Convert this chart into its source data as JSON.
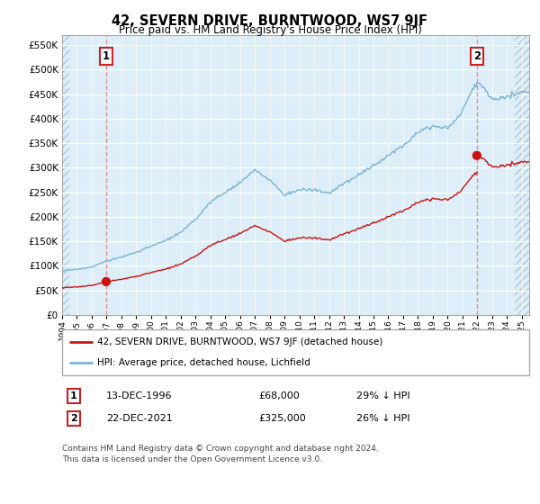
{
  "title": "42, SEVERN DRIVE, BURNTWOOD, WS7 9JF",
  "subtitle": "Price paid vs. HM Land Registry's House Price Index (HPI)",
  "ylim": [
    0,
    570000
  ],
  "yticks": [
    0,
    50000,
    100000,
    150000,
    200000,
    250000,
    300000,
    350000,
    400000,
    450000,
    500000,
    550000
  ],
  "hpi_color": "#7ab3d4",
  "price_color": "#cc1111",
  "sale1_date_num": 1996.97,
  "sale1_price": 68000,
  "sale2_date_num": 2021.97,
  "sale2_price": 325000,
  "legend_label1": "42, SEVERN DRIVE, BURNTWOOD, WS7 9JF (detached house)",
  "legend_label2": "HPI: Average price, detached house, Lichfield",
  "table_row1": [
    "1",
    "13-DEC-1996",
    "£68,000",
    "29% ↓ HPI"
  ],
  "table_row2": [
    "2",
    "22-DEC-2021",
    "£325,000",
    "26% ↓ HPI"
  ],
  "footer": "Contains HM Land Registry data © Crown copyright and database right 2024.\nThis data is licensed under the Open Government Licence v3.0.",
  "xstart": 1994.0,
  "xend": 2025.5,
  "bg_color": "#ddeef8",
  "grid_color": "#ffffff",
  "hatch_outside_color": "#c5d8e8"
}
